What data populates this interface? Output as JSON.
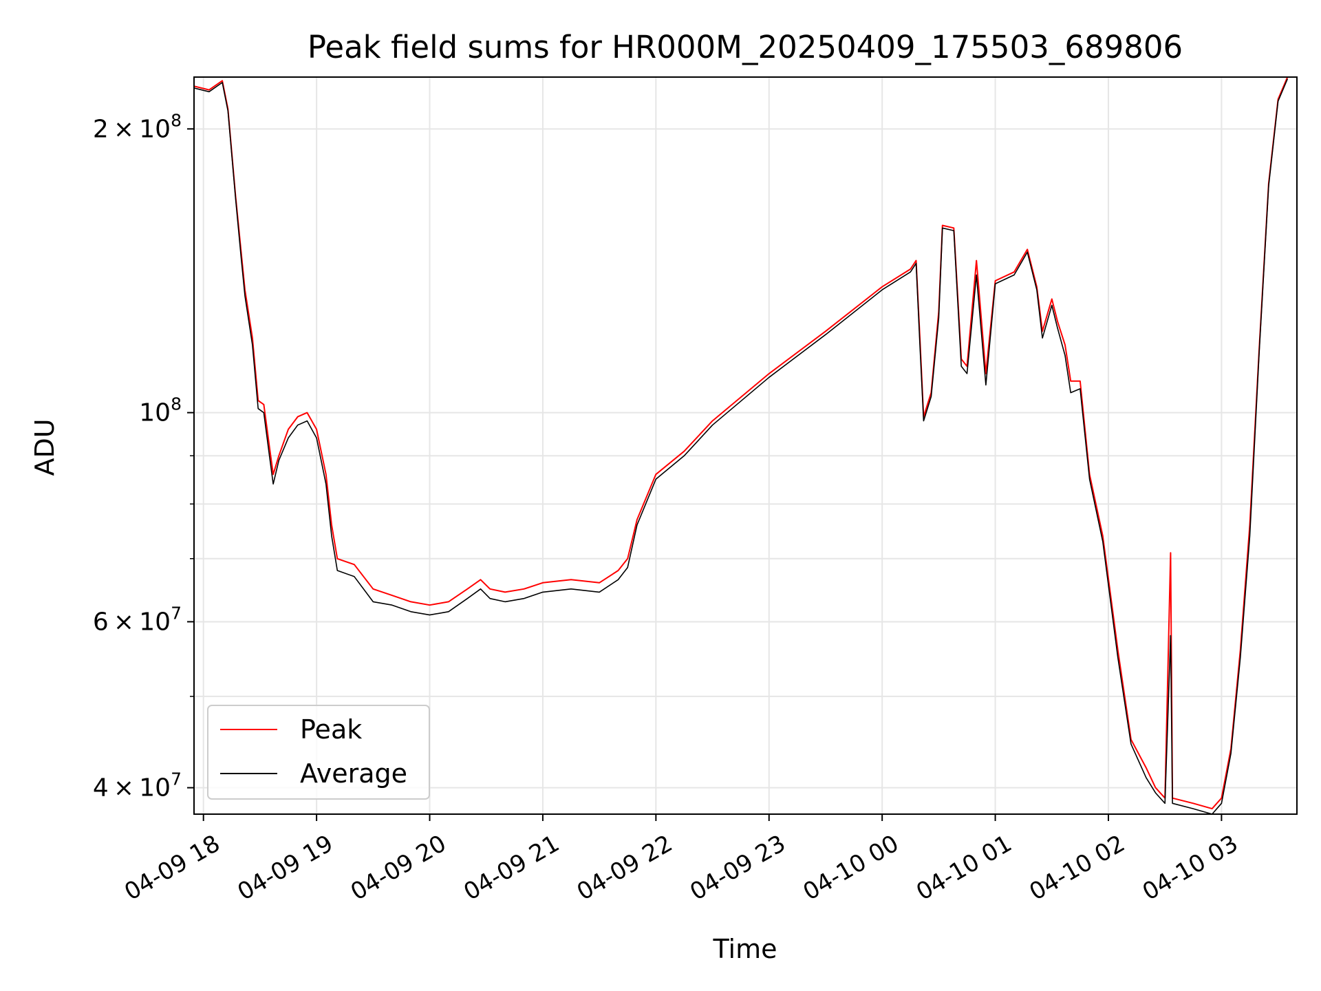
{
  "chart_data": {
    "type": "line",
    "title": "Peak field sums for HR000M_20250409_175503_689806",
    "xlabel": "Time",
    "ylabel": "ADU",
    "yscale": "log",
    "xlim": [
      "2025-04-09 17:55",
      "2025-04-10 03:40"
    ],
    "ylim": [
      37500000,
      227000000
    ],
    "grid": true,
    "legend_position": "lower-left",
    "x_ticks": [
      {
        "t": "2025-04-09 18:00",
        "label": "04-09 18"
      },
      {
        "t": "2025-04-09 19:00",
        "label": "04-09 19"
      },
      {
        "t": "2025-04-09 20:00",
        "label": "04-09 20"
      },
      {
        "t": "2025-04-09 21:00",
        "label": "04-09 21"
      },
      {
        "t": "2025-04-09 22:00",
        "label": "04-09 22"
      },
      {
        "t": "2025-04-09 23:00",
        "label": "04-09 23"
      },
      {
        "t": "2025-04-10 00:00",
        "label": "04-10 00"
      },
      {
        "t": "2025-04-10 01:00",
        "label": "04-10 01"
      },
      {
        "t": "2025-04-10 02:00",
        "label": "04-10 02"
      },
      {
        "t": "2025-04-10 03:00",
        "label": "04-10 03"
      }
    ],
    "y_ticks": [
      {
        "v": 40000000,
        "label_mantissa": "4",
        "label_base": "10",
        "label_exp": "7"
      },
      {
        "v": 60000000,
        "label_mantissa": "6",
        "label_base": "10",
        "label_exp": "7"
      },
      {
        "v": 100000000,
        "label_mantissa": "",
        "label_base": "10",
        "label_exp": "8"
      },
      {
        "v": 200000000,
        "label_mantissa": "2",
        "label_base": "10",
        "label_exp": "8"
      }
    ],
    "y_minor_ticks": [
      50000000,
      70000000,
      80000000,
      90000000
    ],
    "series": [
      {
        "name": "Peak",
        "color": "#ff0000",
        "points": [
          [
            "2025-04-09 17:55",
            222000000.0
          ],
          [
            "2025-04-09 18:03",
            220000000.0
          ],
          [
            "2025-04-09 18:10",
            225000000.0
          ],
          [
            "2025-04-09 18:13",
            210000000.0
          ],
          [
            "2025-04-09 18:17",
            170000000.0
          ],
          [
            "2025-04-09 18:20",
            148000000.0
          ],
          [
            "2025-04-09 18:22",
            135000000.0
          ],
          [
            "2025-04-09 18:26",
            120000000.0
          ],
          [
            "2025-04-09 18:29",
            103000000.0
          ],
          [
            "2025-04-09 18:32",
            102000000.0
          ],
          [
            "2025-04-09 18:35",
            92000000.0
          ],
          [
            "2025-04-09 18:37",
            86000000.0
          ],
          [
            "2025-04-09 18:40",
            90000000.0
          ],
          [
            "2025-04-09 18:45",
            96000000.0
          ],
          [
            "2025-04-09 18:50",
            99000000.0
          ],
          [
            "2025-04-09 18:55",
            100000000.0
          ],
          [
            "2025-04-09 19:00",
            96000000.0
          ],
          [
            "2025-04-09 19:05",
            86000000.0
          ],
          [
            "2025-04-09 19:08",
            76000000.0
          ],
          [
            "2025-04-09 19:11",
            70000000.0
          ],
          [
            "2025-04-09 19:20",
            69000000.0
          ],
          [
            "2025-04-09 19:30",
            65000000.0
          ],
          [
            "2025-04-09 19:40",
            64000000.0
          ],
          [
            "2025-04-09 19:50",
            63000000.0
          ],
          [
            "2025-04-09 20:00",
            62500000.0
          ],
          [
            "2025-04-09 20:10",
            63000000.0
          ],
          [
            "2025-04-09 20:20",
            65000000.0
          ],
          [
            "2025-04-09 20:27",
            66500000.0
          ],
          [
            "2025-04-09 20:32",
            65000000.0
          ],
          [
            "2025-04-09 20:40",
            64500000.0
          ],
          [
            "2025-04-09 20:50",
            65000000.0
          ],
          [
            "2025-04-09 21:00",
            66000000.0
          ],
          [
            "2025-04-09 21:15",
            66500000.0
          ],
          [
            "2025-04-09 21:30",
            66000000.0
          ],
          [
            "2025-04-09 21:40",
            68000000.0
          ],
          [
            "2025-04-09 21:45",
            70000000.0
          ],
          [
            "2025-04-09 21:50",
            77000000.0
          ],
          [
            "2025-04-09 22:00",
            86000000.0
          ],
          [
            "2025-04-09 22:15",
            91000000.0
          ],
          [
            "2025-04-09 22:30",
            98000000.0
          ],
          [
            "2025-04-09 23:00",
            110000000.0
          ],
          [
            "2025-04-09 23:30",
            122000000.0
          ],
          [
            "2025-04-10 00:00",
            136000000.0
          ],
          [
            "2025-04-10 00:15",
            142000000.0
          ],
          [
            "2025-04-10 00:18",
            145000000.0
          ],
          [
            "2025-04-10 00:20",
            120000000.0
          ],
          [
            "2025-04-10 00:22",
            99000000.0
          ],
          [
            "2025-04-10 00:26",
            105000000.0
          ],
          [
            "2025-04-10 00:30",
            128000000.0
          ],
          [
            "2025-04-10 00:32",
            158000000.0
          ],
          [
            "2025-04-10 00:38",
            157000000.0
          ],
          [
            "2025-04-10 00:42",
            114000000.0
          ],
          [
            "2025-04-10 00:45",
            112000000.0
          ],
          [
            "2025-04-10 00:50",
            145000000.0
          ],
          [
            "2025-04-10 00:55",
            110000000.0
          ],
          [
            "2025-04-10 01:00",
            138000000.0
          ],
          [
            "2025-04-10 01:10",
            141000000.0
          ],
          [
            "2025-04-10 01:17",
            149000000.0
          ],
          [
            "2025-04-10 01:22",
            136000000.0
          ],
          [
            "2025-04-10 01:25",
            122000000.0
          ],
          [
            "2025-04-10 01:30",
            132000000.0
          ],
          [
            "2025-04-10 01:33",
            125000000.0
          ],
          [
            "2025-04-10 01:37",
            118000000.0
          ],
          [
            "2025-04-10 01:40",
            108000000.0
          ],
          [
            "2025-04-10 01:45",
            108000000.0
          ],
          [
            "2025-04-10 01:50",
            86000000.0
          ],
          [
            "2025-04-10 01:57",
            74000000.0
          ],
          [
            "2025-04-10 02:05",
            56000000.0
          ],
          [
            "2025-04-10 02:12",
            45000000.0
          ],
          [
            "2025-04-10 02:20",
            42000000.0
          ],
          [
            "2025-04-10 02:25",
            40000000.0
          ],
          [
            "2025-04-10 02:30",
            39000000.0
          ],
          [
            "2025-04-10 02:33",
            71000000.0
          ],
          [
            "2025-04-10 02:34",
            39000000.0
          ],
          [
            "2025-04-10 02:45",
            38500000.0
          ],
          [
            "2025-04-10 02:55",
            38000000.0
          ],
          [
            "2025-04-10 03:00",
            39000000.0
          ],
          [
            "2025-04-10 03:05",
            44000000.0
          ],
          [
            "2025-04-10 03:10",
            56000000.0
          ],
          [
            "2025-04-10 03:15",
            76000000.0
          ],
          [
            "2025-04-10 03:20",
            117000000.0
          ],
          [
            "2025-04-10 03:25",
            175000000.0
          ],
          [
            "2025-04-10 03:30",
            215000000.0
          ],
          [
            "2025-04-10 03:35",
            227000000.0
          ]
        ]
      },
      {
        "name": "Average",
        "color": "#000000",
        "points": [
          [
            "2025-04-09 17:55",
            221000000.0
          ],
          [
            "2025-04-09 18:03",
            219000000.0
          ],
          [
            "2025-04-09 18:10",
            224000000.0
          ],
          [
            "2025-04-09 18:13",
            209000000.0
          ],
          [
            "2025-04-09 18:17",
            169000000.0
          ],
          [
            "2025-04-09 18:20",
            146000000.0
          ],
          [
            "2025-04-09 18:22",
            133000000.0
          ],
          [
            "2025-04-09 18:26",
            118000000.0
          ],
          [
            "2025-04-09 18:29",
            101000000.0
          ],
          [
            "2025-04-09 18:32",
            100000000.0
          ],
          [
            "2025-04-09 18:35",
            90000000.0
          ],
          [
            "2025-04-09 18:37",
            84000000.0
          ],
          [
            "2025-04-09 18:40",
            89000000.0
          ],
          [
            "2025-04-09 18:45",
            94000000.0
          ],
          [
            "2025-04-09 18:50",
            97000000.0
          ],
          [
            "2025-04-09 18:55",
            98000000.0
          ],
          [
            "2025-04-09 19:00",
            94000000.0
          ],
          [
            "2025-04-09 19:05",
            84000000.0
          ],
          [
            "2025-04-09 19:08",
            74000000.0
          ],
          [
            "2025-04-09 19:11",
            68000000.0
          ],
          [
            "2025-04-09 19:20",
            67000000.0
          ],
          [
            "2025-04-09 19:30",
            63000000.0
          ],
          [
            "2025-04-09 19:40",
            62500000.0
          ],
          [
            "2025-04-09 19:50",
            61500000.0
          ],
          [
            "2025-04-09 20:00",
            61000000.0
          ],
          [
            "2025-04-09 20:10",
            61500000.0
          ],
          [
            "2025-04-09 20:20",
            63500000.0
          ],
          [
            "2025-04-09 20:27",
            65000000.0
          ],
          [
            "2025-04-09 20:32",
            63500000.0
          ],
          [
            "2025-04-09 20:40",
            63000000.0
          ],
          [
            "2025-04-09 20:50",
            63500000.0
          ],
          [
            "2025-04-09 21:00",
            64500000.0
          ],
          [
            "2025-04-09 21:15",
            65000000.0
          ],
          [
            "2025-04-09 21:30",
            64500000.0
          ],
          [
            "2025-04-09 21:40",
            66500000.0
          ],
          [
            "2025-04-09 21:45",
            68500000.0
          ],
          [
            "2025-04-09 21:50",
            76000000.0
          ],
          [
            "2025-04-09 22:00",
            85000000.0
          ],
          [
            "2025-04-09 22:15",
            90000000.0
          ],
          [
            "2025-04-09 22:30",
            97000000.0
          ],
          [
            "2025-04-09 23:00",
            109000000.0
          ],
          [
            "2025-04-09 23:30",
            121000000.0
          ],
          [
            "2025-04-10 00:00",
            135000000.0
          ],
          [
            "2025-04-10 00:15",
            141000000.0
          ],
          [
            "2025-04-10 00:18",
            144000000.0
          ],
          [
            "2025-04-10 00:20",
            118000000.0
          ],
          [
            "2025-04-10 00:22",
            98000000.0
          ],
          [
            "2025-04-10 00:26",
            104000000.0
          ],
          [
            "2025-04-10 00:30",
            126000000.0
          ],
          [
            "2025-04-10 00:32",
            157000000.0
          ],
          [
            "2025-04-10 00:38",
            156000000.0
          ],
          [
            "2025-04-10 00:42",
            112000000.0
          ],
          [
            "2025-04-10 00:45",
            110000000.0
          ],
          [
            "2025-04-10 00:50",
            140000000.0
          ],
          [
            "2025-04-10 00:55",
            107000000.0
          ],
          [
            "2025-04-10 01:00",
            137000000.0
          ],
          [
            "2025-04-10 01:10",
            140000000.0
          ],
          [
            "2025-04-10 01:17",
            148000000.0
          ],
          [
            "2025-04-10 01:22",
            135000000.0
          ],
          [
            "2025-04-10 01:25",
            120000000.0
          ],
          [
            "2025-04-10 01:30",
            130000000.0
          ],
          [
            "2025-04-10 01:33",
            123000000.0
          ],
          [
            "2025-04-10 01:37",
            115000000.0
          ],
          [
            "2025-04-10 01:40",
            105000000.0
          ],
          [
            "2025-04-10 01:45",
            106000000.0
          ],
          [
            "2025-04-10 01:50",
            85000000.0
          ],
          [
            "2025-04-10 01:57",
            73000000.0
          ],
          [
            "2025-04-10 02:05",
            55000000.0
          ],
          [
            "2025-04-10 02:12",
            44500000.0
          ],
          [
            "2025-04-10 02:20",
            41000000.0
          ],
          [
            "2025-04-10 02:25",
            39500000.0
          ],
          [
            "2025-04-10 02:30",
            38500000.0
          ],
          [
            "2025-04-10 02:33",
            58000000.0
          ],
          [
            "2025-04-10 02:34",
            38500000.0
          ],
          [
            "2025-04-10 02:45",
            38000000.0
          ],
          [
            "2025-04-10 02:55",
            37500000.0
          ],
          [
            "2025-04-10 03:00",
            38500000.0
          ],
          [
            "2025-04-10 03:05",
            43500000.0
          ],
          [
            "2025-04-10 03:10",
            55000000.0
          ],
          [
            "2025-04-10 03:15",
            74000000.0
          ],
          [
            "2025-04-10 03:20",
            116000000.0
          ],
          [
            "2025-04-10 03:25",
            174000000.0
          ],
          [
            "2025-04-10 03:30",
            214000000.0
          ],
          [
            "2025-04-10 03:35",
            226000000.0
          ]
        ]
      }
    ]
  }
}
